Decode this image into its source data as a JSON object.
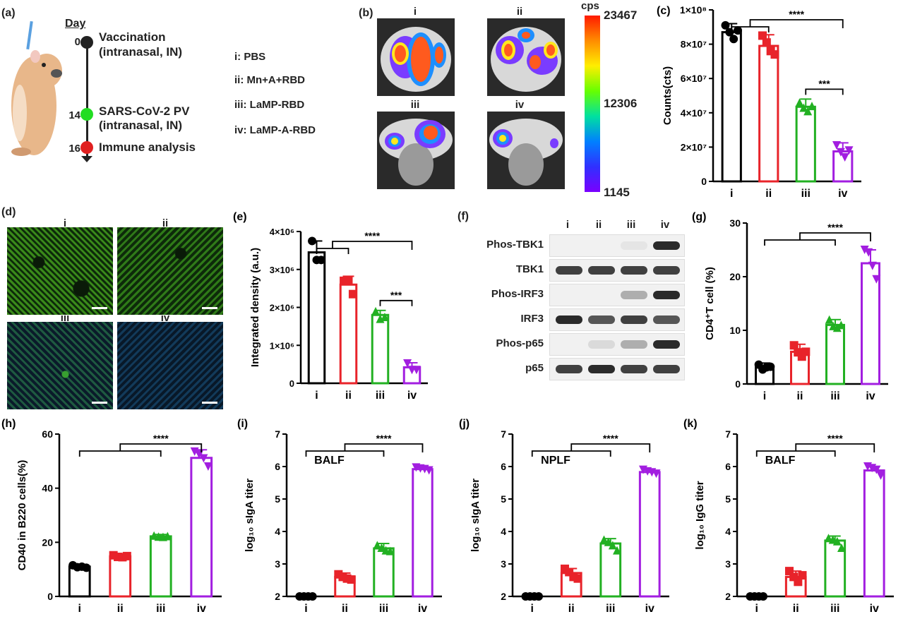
{
  "panels": {
    "a": {
      "label": "(a)",
      "day_header": "Day",
      "events": [
        {
          "day": "0",
          "title": "Vaccination",
          "detail": "(intranasal, IN)",
          "color": "#222222"
        },
        {
          "day": "14",
          "title": "SARS-CoV-2 PV",
          "detail": "(intranasal, IN)",
          "color": "#22dd22"
        },
        {
          "day": "16",
          "title": "Immune analysis",
          "detail": "",
          "color": "#e02020"
        }
      ],
      "groups_legend": [
        "i: PBS",
        "ii: Mn+A+RBD",
        "iii: LaMP-RBD",
        "iv: LaMP-A-RBD"
      ]
    },
    "b": {
      "label": "(b)",
      "images": [
        "i",
        "ii",
        "iii",
        "iv"
      ],
      "colorbar_unit": "cps",
      "colorbar_ticks": [
        "23467",
        "12306",
        "1145"
      ]
    },
    "d": {
      "label": "(d)",
      "images": [
        "i",
        "ii",
        "iii",
        "iv"
      ]
    },
    "f": {
      "label": "(f)",
      "columns": [
        "i",
        "ii",
        "iii",
        "iv"
      ],
      "rows": [
        "Phos-TBK1",
        "TBK1",
        "Phos-IRF3",
        "IRF3",
        "Phos-p65",
        "p65"
      ]
    }
  },
  "colors": {
    "i": "#000000",
    "ii": "#e8232a",
    "iii": "#22b022",
    "iv": "#a21ee0"
  },
  "chart_data": [
    {
      "id": "c",
      "label": "(c)",
      "type": "bar",
      "categories": [
        "i",
        "ii",
        "iii",
        "iv"
      ],
      "values": [
        87000000,
        79000000,
        43500000,
        17500000
      ],
      "errors": [
        5000000,
        6500000,
        4500000,
        5000000
      ],
      "points": [
        [
          91000000,
          87000000,
          83000000,
          88000000
        ],
        [
          85000000,
          81000000,
          76000000,
          74000000
        ],
        [
          46000000,
          43000000,
          41000000,
          44000000
        ],
        [
          21000000,
          17000000,
          14000000,
          18000000
        ]
      ],
      "ylabel": "Counts(cts)",
      "ylim": [
        0,
        100000000
      ],
      "yticks": [
        0,
        20000000,
        40000000,
        60000000,
        80000000,
        100000000
      ],
      "ytick_labels": [
        "0",
        "2×10⁷",
        "4×10⁷",
        "6×10⁷",
        "8×10⁷",
        "1×10⁸"
      ],
      "text_label": "",
      "significance": [
        {
          "text": "****",
          "from": [
            0,
            1
          ],
          "to": 3
        },
        {
          "text": "***",
          "from": [
            2,
            2
          ],
          "to": 3
        }
      ]
    },
    {
      "id": "e",
      "label": "(e)",
      "type": "bar",
      "categories": [
        "i",
        "ii",
        "iii",
        "iv"
      ],
      "values": [
        3450000,
        2600000,
        1800000,
        420000
      ],
      "errors": [
        300000,
        220000,
        120000,
        120000
      ],
      "points": [
        [
          3750000,
          3250000,
          3250000
        ],
        [
          2700000,
          2700000,
          2350000
        ],
        [
          1900000,
          1700000,
          1750000
        ],
        [
          520000,
          350000,
          350000
        ]
      ],
      "ylabel": "Integrated density (a.u.)",
      "ylim": [
        0,
        4000000
      ],
      "yticks": [
        0,
        1000000,
        2000000,
        3000000,
        4000000
      ],
      "ytick_labels": [
        "0",
        "1×10⁶",
        "2×10⁶",
        "3×10⁶",
        "4×10⁶"
      ],
      "text_label": "",
      "significance": [
        {
          "text": "****",
          "from": [
            0,
            1
          ],
          "to": 3
        },
        {
          "text": "***",
          "from": [
            2,
            2
          ],
          "to": 3
        }
      ]
    },
    {
      "id": "g",
      "label": "(g)",
      "type": "bar",
      "categories": [
        "i",
        "ii",
        "iii",
        "iv"
      ],
      "values": [
        3.2,
        6.0,
        11.0,
        22.5
      ],
      "errors": [
        0.7,
        1.4,
        1.0,
        2.5
      ],
      "points": [
        [
          3.6,
          2.7,
          3.1,
          3.2
        ],
        [
          7.2,
          5.9,
          5.1,
          6.0
        ],
        [
          12.0,
          10.8,
          10.5,
          11.0
        ],
        [
          25.0,
          24.5,
          22.0,
          19.5
        ]
      ],
      "ylabel": "CD4⁺T cell (%)",
      "ylim": [
        0,
        30
      ],
      "yticks": [
        0,
        10,
        20,
        30
      ],
      "ytick_labels": [
        "0",
        "10",
        "20",
        "30"
      ],
      "text_label": "",
      "significance": [
        {
          "text": "****",
          "from": [
            0,
            2
          ],
          "to": 3
        }
      ]
    },
    {
      "id": "h",
      "label": "(h)",
      "type": "bar",
      "categories": [
        "i",
        "ii",
        "iii",
        "iv"
      ],
      "values": [
        11.0,
        14.8,
        22.2,
        51.2
      ],
      "errors": [
        0.8,
        0.8,
        0.7,
        3.0
      ],
      "points": [
        [
          11.5,
          10.8,
          11.0,
          10.6
        ],
        [
          15.2,
          14.6,
          14.5,
          14.9
        ],
        [
          22.5,
          22.1,
          22.0,
          22.3
        ],
        [
          53.5,
          52.5,
          51.0,
          48.0
        ]
      ],
      "ylabel": "CD40 in B220 cells(%)",
      "ylim": [
        0,
        60
      ],
      "yticks": [
        0,
        20,
        40,
        60
      ],
      "ytick_labels": [
        "0",
        "20",
        "40",
        "60"
      ],
      "text_label": "",
      "significance": [
        {
          "text": "****",
          "from": [
            0,
            2
          ],
          "to": 3
        }
      ]
    },
    {
      "id": "i",
      "label": "(i)",
      "type": "bar",
      "categories": [
        "i",
        "ii",
        "iii",
        "iv"
      ],
      "values": [
        2.0,
        2.6,
        3.48,
        5.92
      ],
      "errors": [
        0.0,
        0.12,
        0.15,
        0.07
      ],
      "points": [
        [
          2.0,
          2.0,
          2.0,
          2.0
        ],
        [
          2.68,
          2.6,
          2.55,
          2.52
        ],
        [
          3.58,
          3.5,
          3.42,
          3.4
        ],
        [
          5.97,
          5.94,
          5.92,
          5.88
        ]
      ],
      "ylabel": "log₁₀ sIgA titer",
      "ylim": [
        2,
        7
      ],
      "yticks": [
        2,
        3,
        4,
        5,
        6,
        7
      ],
      "ytick_labels": [
        "2",
        "3",
        "4",
        "5",
        "6",
        "7"
      ],
      "text_label": "BALF",
      "significance": [
        {
          "text": "****",
          "from": [
            0,
            2
          ],
          "to": 3
        }
      ]
    },
    {
      "id": "j",
      "label": "(j)",
      "type": "bar",
      "categories": [
        "i",
        "ii",
        "iii",
        "iv"
      ],
      "values": [
        2.0,
        2.72,
        3.63,
        5.83
      ],
      "errors": [
        0.0,
        0.14,
        0.15,
        0.07
      ],
      "points": [
        [
          2.0,
          2.0,
          2.0,
          2.0
        ],
        [
          2.85,
          2.75,
          2.6,
          2.55
        ],
        [
          3.75,
          3.68,
          3.58,
          3.42
        ],
        [
          5.9,
          5.85,
          5.82,
          5.78
        ]
      ],
      "ylabel": "log₁₀ sIgA titer",
      "ylim": [
        2,
        7
      ],
      "yticks": [
        2,
        3,
        4,
        5,
        6,
        7
      ],
      "ytick_labels": [
        "2",
        "3",
        "4",
        "5",
        "6",
        "7"
      ],
      "text_label": "NPLF",
      "significance": [
        {
          "text": "****",
          "from": [
            0,
            2
          ],
          "to": 3
        }
      ]
    },
    {
      "id": "k",
      "label": "(k)",
      "type": "bar",
      "categories": [
        "i",
        "ii",
        "iii",
        "iv"
      ],
      "values": [
        2.0,
        2.6,
        3.72,
        5.88
      ],
      "errors": [
        0.0,
        0.18,
        0.14,
        0.12
      ],
      "points": [
        [
          2.0,
          2.0,
          2.0,
          2.0
        ],
        [
          2.78,
          2.6,
          2.45,
          2.65
        ],
        [
          3.8,
          3.75,
          3.7,
          3.5
        ],
        [
          6.0,
          5.95,
          5.9,
          5.72
        ]
      ],
      "ylabel": "log₁₀ IgG titer",
      "ylim": [
        2,
        7
      ],
      "yticks": [
        2,
        3,
        4,
        5,
        6,
        7
      ],
      "ytick_labels": [
        "2",
        "3",
        "4",
        "5",
        "6",
        "7"
      ],
      "text_label": "BALF",
      "significance": [
        {
          "text": "****",
          "from": [
            0,
            2
          ],
          "to": 3
        }
      ]
    }
  ]
}
